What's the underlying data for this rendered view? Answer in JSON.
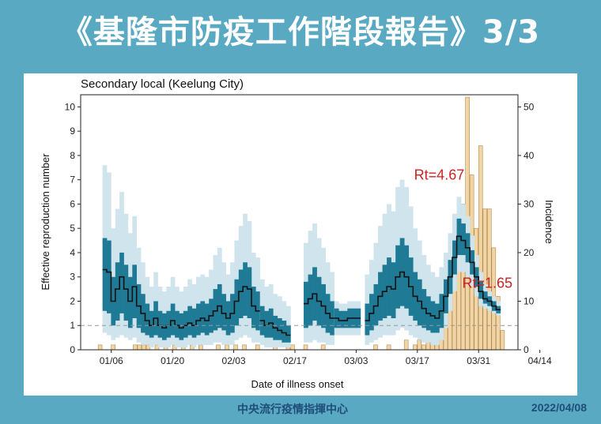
{
  "header": {
    "title": "《基隆市防疫工作階段報告》3/3"
  },
  "footer": {
    "agency": "中央流行疫情指揮中心",
    "date": "2022/04/08"
  },
  "colors": {
    "ci_outer": "#cfe4ec",
    "ci_inner": "#1f7a96",
    "line": "#111111",
    "bar_fill": "#f2d5a4",
    "bar_edge": "#b08a56",
    "threshold": "#999999",
    "annotation": "#cc2222"
  },
  "chart_data": {
    "type": "line",
    "title": "Secondary local (Keelung City)",
    "xlabel": "Date of illness onset",
    "ylabel": "Effective reproduction number",
    "y2label": "Incidence",
    "xlim": [
      0,
      100
    ],
    "ylim": [
      0,
      10.5
    ],
    "y2lim": [
      0,
      52.5
    ],
    "yticks": [
      0,
      1,
      2,
      3,
      4,
      5,
      6,
      7,
      8,
      9,
      10
    ],
    "y2ticks": [
      0,
      10,
      20,
      30,
      40,
      50
    ],
    "xticks": [
      {
        "day": 7,
        "label": "01/06"
      },
      {
        "day": 21,
        "label": "01/20"
      },
      {
        "day": 35,
        "label": "02/03"
      },
      {
        "day": 49,
        "label": "02/17"
      },
      {
        "day": 63,
        "label": "03/03"
      },
      {
        "day": 77,
        "label": "03/17"
      },
      {
        "day": 91,
        "label": "03/31"
      },
      {
        "day": 105,
        "label": "04/14"
      }
    ],
    "threshold": 1,
    "annotations": [
      {
        "text": "Rt=4.67",
        "day": 82,
        "value": 7.0
      },
      {
        "text": "Rt=1.65",
        "day": 93,
        "value": 2.55
      }
    ],
    "rt_segments": [
      {
        "start": 5,
        "end": 41,
        "rt": [
          3.3,
          3.2,
          2.0,
          2.5,
          3.0,
          2.5,
          2.0,
          2.6,
          1.8,
          1.5,
          1.2,
          1.0,
          1.3,
          1.0,
          0.9,
          1.0,
          1.2,
          1.0,
          0.9,
          1.0,
          1.1,
          1.0,
          1.2,
          1.3,
          1.2,
          1.4,
          1.6,
          1.8,
          1.5,
          1.3,
          1.5,
          2.0,
          2.4,
          2.6,
          2.5,
          1.8,
          1.6
        ],
        "inner_lo": [
          1.6,
          1.5,
          1.0,
          1.2,
          1.5,
          1.2,
          0.9,
          1.3,
          0.9,
          0.7,
          0.6,
          0.5,
          0.6,
          0.5,
          0.4,
          0.5,
          0.6,
          0.5,
          0.4,
          0.5,
          0.6,
          0.5,
          0.6,
          0.7,
          0.6,
          0.7,
          0.8,
          0.9,
          0.8,
          0.6,
          0.7,
          1.0,
          1.3,
          1.4,
          1.3,
          0.9,
          0.8
        ],
        "inner_hi": [
          4.6,
          4.5,
          3.0,
          3.6,
          4.0,
          3.5,
          3.0,
          3.5,
          2.7,
          2.3,
          1.9,
          1.6,
          2.0,
          1.6,
          1.5,
          1.6,
          1.9,
          1.6,
          1.5,
          1.6,
          1.8,
          1.7,
          1.9,
          2.0,
          1.9,
          2.1,
          2.5,
          2.7,
          2.3,
          2.0,
          2.3,
          2.9,
          3.3,
          3.6,
          3.4,
          2.6,
          2.4
        ],
        "outer_lo": [
          0.7,
          0.6,
          0.4,
          0.5,
          0.6,
          0.5,
          0.4,
          0.5,
          0.3,
          0.2,
          0.2,
          0.1,
          0.2,
          0.1,
          0.1,
          0.1,
          0.2,
          0.1,
          0.1,
          0.1,
          0.2,
          0.1,
          0.2,
          0.2,
          0.2,
          0.2,
          0.3,
          0.3,
          0.2,
          0.2,
          0.2,
          0.4,
          0.5,
          0.6,
          0.5,
          0.3,
          0.3
        ],
        "outer_hi": [
          7.6,
          7.3,
          5.0,
          5.8,
          6.5,
          5.6,
          4.8,
          5.5,
          4.2,
          3.6,
          3.0,
          2.6,
          3.2,
          2.6,
          2.4,
          2.6,
          3.0,
          2.6,
          2.4,
          2.6,
          2.9,
          2.7,
          3.0,
          3.1,
          3.0,
          3.3,
          3.9,
          4.2,
          3.6,
          3.1,
          3.6,
          4.5,
          5.1,
          5.6,
          5.3,
          4.0,
          3.8
        ]
      },
      {
        "start": 41,
        "end": 48,
        "rt": [
          1.2,
          1.0,
          1.1,
          0.9,
          0.8,
          0.7,
          0.6
        ],
        "inner_lo": [
          0.6,
          0.5,
          0.5,
          0.4,
          0.4,
          0.3,
          0.3
        ],
        "inner_hi": [
          1.8,
          1.6,
          1.7,
          1.4,
          1.3,
          1.2,
          1.0
        ],
        "outer_lo": [
          0.2,
          0.1,
          0.1,
          0.1,
          0.1,
          0.1,
          0.1
        ],
        "outer_hi": [
          2.9,
          2.6,
          2.7,
          2.3,
          2.2,
          2.0,
          1.8
        ]
      },
      {
        "start": 51,
        "end": 58,
        "rt": [
          1.9,
          2.1,
          2.3,
          2.0,
          1.8,
          1.5,
          1.3
        ],
        "inner_lo": [
          0.9,
          1.0,
          1.2,
          1.0,
          0.9,
          0.7,
          0.6
        ],
        "inner_hi": [
          2.8,
          3.1,
          3.4,
          3.0,
          2.7,
          2.3,
          2.0
        ],
        "outer_lo": [
          0.3,
          0.3,
          0.4,
          0.3,
          0.3,
          0.2,
          0.2
        ],
        "outer_hi": [
          4.4,
          4.9,
          5.2,
          4.6,
          4.2,
          3.6,
          3.2
        ]
      },
      {
        "start": 58,
        "end": 64,
        "rt": [
          1.3,
          1.2,
          1.2,
          1.3,
          1.3,
          1.3
        ],
        "inner_lo": [
          0.9,
          0.9,
          0.9,
          0.9,
          0.9,
          0.9
        ],
        "inner_hi": [
          1.7,
          1.6,
          1.6,
          1.7,
          1.7,
          1.7
        ],
        "outer_lo": [
          0.6,
          0.6,
          0.6,
          0.6,
          0.6,
          0.6
        ],
        "outer_hi": [
          2.0,
          1.9,
          1.9,
          2.0,
          2.0,
          2.0
        ]
      },
      {
        "start": 65,
        "end": 96,
        "rt": [
          1.2,
          1.5,
          1.8,
          2.2,
          2.4,
          2.6,
          2.5,
          3.0,
          3.2,
          3.0,
          2.6,
          2.2,
          2.0,
          1.7,
          1.5,
          1.4,
          1.3,
          1.6,
          2.2,
          3.0,
          3.8,
          4.67,
          4.5,
          4.2,
          3.6,
          3.0,
          2.4,
          2.1,
          2.0,
          1.8,
          1.65
        ],
        "inner_lo": [
          0.6,
          0.8,
          1.0,
          1.2,
          1.3,
          1.4,
          1.3,
          1.7,
          1.8,
          1.7,
          1.4,
          1.2,
          1.0,
          0.9,
          0.8,
          0.7,
          0.7,
          0.9,
          1.5,
          2.3,
          3.1,
          3.9,
          3.9,
          3.6,
          3.1,
          2.6,
          2.1,
          1.9,
          1.8,
          1.6,
          1.5
        ],
        "inner_hi": [
          1.9,
          2.3,
          2.7,
          3.2,
          3.5,
          3.8,
          3.6,
          4.3,
          4.6,
          4.3,
          3.8,
          3.2,
          2.9,
          2.5,
          2.2,
          2.0,
          1.9,
          2.3,
          2.9,
          3.7,
          4.5,
          5.4,
          5.2,
          4.8,
          4.1,
          3.4,
          2.8,
          2.4,
          2.2,
          2.0,
          1.8
        ],
        "outer_lo": [
          0.2,
          0.3,
          0.4,
          0.5,
          0.6,
          0.6,
          0.6,
          0.8,
          0.9,
          0.8,
          0.6,
          0.5,
          0.4,
          0.3,
          0.3,
          0.2,
          0.2,
          0.4,
          0.9,
          1.6,
          2.4,
          3.2,
          3.2,
          3.0,
          2.6,
          2.2,
          1.8,
          1.7,
          1.6,
          1.5,
          1.4
        ],
        "outer_hi": [
          3.1,
          3.7,
          4.4,
          5.1,
          5.6,
          6.0,
          5.7,
          6.7,
          7.0,
          6.7,
          5.9,
          5.0,
          4.5,
          3.9,
          3.5,
          3.2,
          3.0,
          3.4,
          4.0,
          4.8,
          5.6,
          6.3,
          6.0,
          5.5,
          4.7,
          3.9,
          3.2,
          2.7,
          2.4,
          2.2,
          2.0
        ]
      }
    ],
    "incidence": [
      0,
      0,
      0,
      0,
      1,
      0,
      0,
      1,
      0,
      0,
      0,
      0,
      1,
      1,
      1,
      1,
      0,
      1,
      0,
      1,
      0,
      1,
      0,
      1,
      0,
      1,
      0,
      1,
      0,
      0,
      0,
      1,
      0,
      1,
      0,
      1,
      0,
      1,
      0,
      0,
      1,
      0,
      0,
      0,
      1,
      0,
      0,
      1,
      1,
      0,
      0,
      1,
      0,
      0,
      0,
      1,
      0,
      0,
      0,
      0,
      0,
      0,
      0,
      0,
      0,
      0,
      0,
      1,
      0,
      0,
      1,
      0,
      0,
      0,
      2,
      0,
      1,
      2,
      1,
      3,
      5,
      8,
      12,
      14,
      16,
      20,
      24,
      30,
      52,
      36,
      25,
      42,
      29,
      29,
      21,
      11,
      4
    ]
  }
}
